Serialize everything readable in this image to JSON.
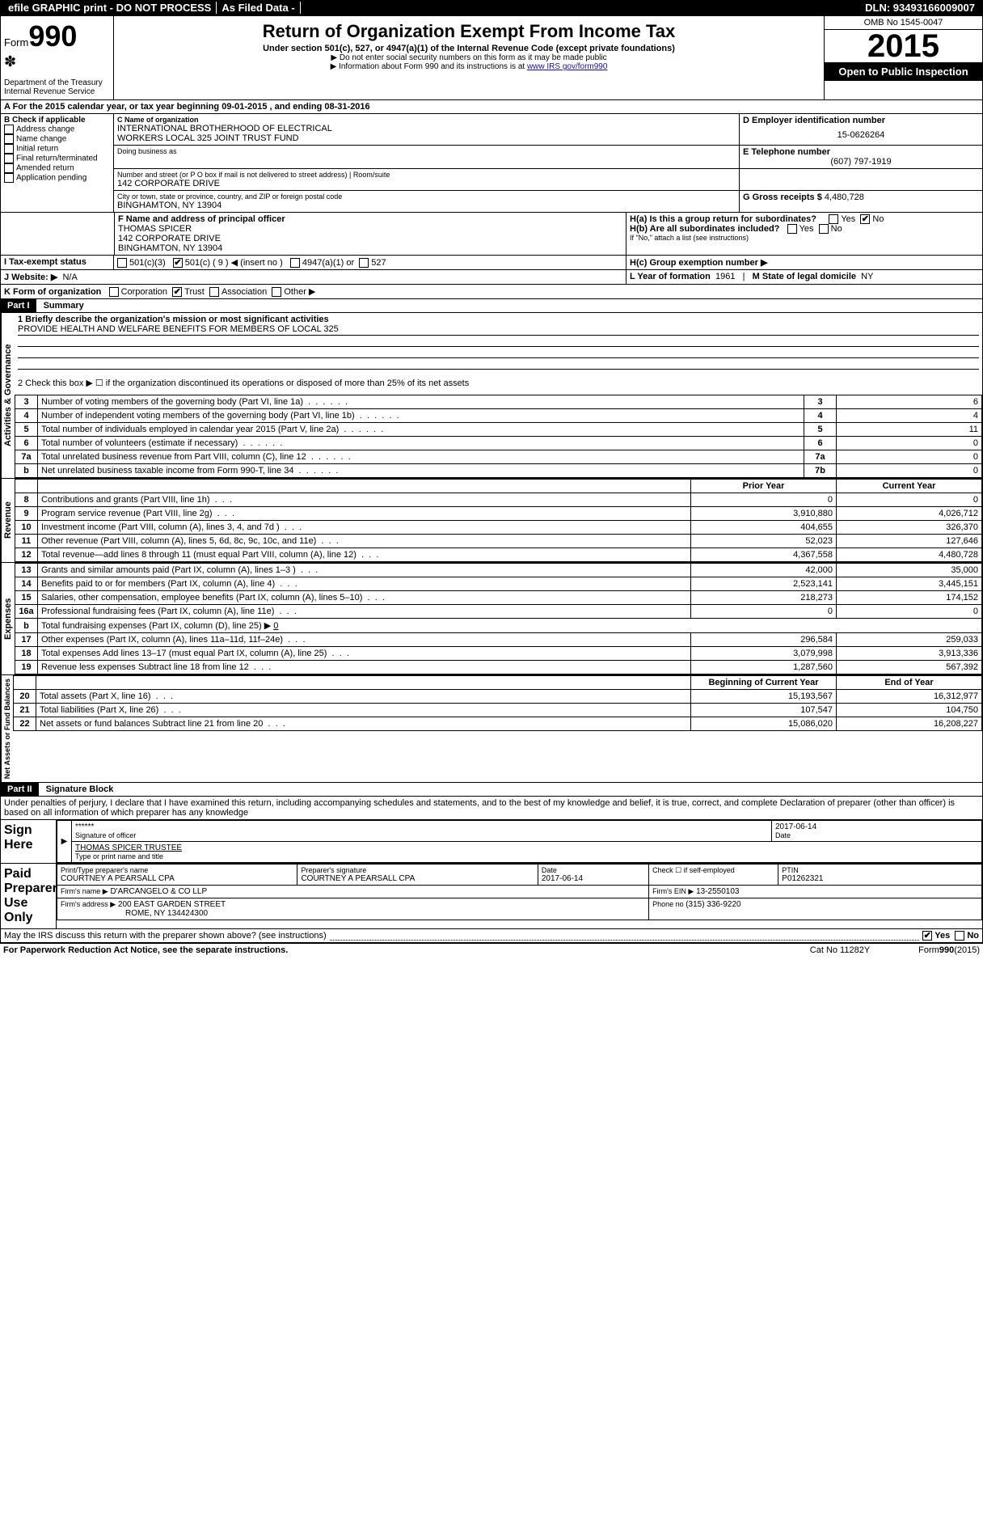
{
  "topbar": {
    "efile": "efile GRAPHIC print - DO NOT PROCESS",
    "asfiled": "As Filed Data -",
    "dln": "DLN: 93493166009007"
  },
  "header": {
    "form_label": "Form",
    "form_number": "990",
    "dept": "Department of the Treasury",
    "irs": "Internal Revenue Service",
    "title": "Return of Organization Exempt From Income Tax",
    "subtitle": "Under section 501(c), 527, or 4947(a)(1) of the Internal Revenue Code (except private foundations)",
    "note1": "▶ Do not enter social security numbers on this form as it may be made public",
    "note2_pre": "▶ Information about Form 990 and its instructions is at ",
    "note2_link": "www IRS gov/form990",
    "omb": "OMB No 1545-0047",
    "year": "2015",
    "open": "Open to Public Inspection"
  },
  "lineA": {
    "text_pre": "A  For the 2015 calendar year, or tax year beginning ",
    "begin": "09-01-2015",
    "mid": " , and ending ",
    "end": "08-31-2016"
  },
  "boxB": {
    "title": "B Check if applicable",
    "items": [
      "Address change",
      "Name change",
      "Initial return",
      "Final return/terminated",
      "Amended return",
      "Application pending"
    ]
  },
  "boxC": {
    "label": "C Name of organization",
    "org1": "INTERNATIONAL BROTHERHOOD OF ELECTRICAL",
    "org2": "WORKERS LOCAL 325 JOINT TRUST FUND",
    "dba_label": "Doing business as",
    "street_label": "Number and street (or P O  box if mail is not delivered to street address)",
    "room_label": "Room/suite",
    "street": "142 CORPORATE DRIVE",
    "city_label": "City or town, state or province, country, and ZIP or foreign postal code",
    "city": "BINGHAMTON, NY  13904"
  },
  "boxD": {
    "label": "D Employer identification number",
    "value": "15-0626264"
  },
  "boxE": {
    "label": "E Telephone number",
    "value": "(607) 797-1919"
  },
  "boxG": {
    "label": "G Gross receipts $ ",
    "value": "4,480,728"
  },
  "boxF": {
    "label": "F  Name and address of principal officer",
    "name": "THOMAS SPICER",
    "addr1": "142 CORPORATE DRIVE",
    "addr2": "BINGHAMTON, NY  13904"
  },
  "boxH": {
    "a_label": "H(a)  Is this a group return for subordinates?",
    "a_val": "No",
    "yes": "Yes",
    "no": "No",
    "b_label": "H(b)  Are all subordinates included?",
    "b_note": "If \"No,\" attach a list  (see instructions)",
    "c_label": "H(c)  Group exemption number ▶"
  },
  "lineI": {
    "label": "I  Tax-exempt status",
    "opt1": "501(c)(3)",
    "opt2": "501(c) ( 9 ) ◀ (insert no )",
    "opt3": "4947(a)(1) or",
    "opt4": "527"
  },
  "lineJ": {
    "label": "J  Website: ▶",
    "value": "N/A"
  },
  "lineK": {
    "label": "K Form of organization",
    "opts": [
      "Corporation",
      "Trust",
      "Association",
      "Other ▶"
    ],
    "checked": 1
  },
  "lineL": {
    "label": "L Year of formation",
    "value": "1961"
  },
  "lineM": {
    "label": "M State of legal domicile",
    "value": "NY"
  },
  "part1": {
    "hdr": "Part I",
    "title": "Summary",
    "q1_label": "1 Briefly describe the organization's mission or most significant activities",
    "q1_val": "PROVIDE HEALTH AND WELFARE BENEFITS FOR MEMBERS OF LOCAL 325",
    "q2": "2  Check this box ▶ ☐ if the organization discontinued its operations or disposed of more than 25% of its net assets",
    "rows_sm": [
      {
        "n": "3",
        "t": "Number of voting members of the governing body (Part VI, line 1a)",
        "c": "3",
        "v": "6"
      },
      {
        "n": "4",
        "t": "Number of independent voting members of the governing body (Part VI, line 1b)",
        "c": "4",
        "v": "4"
      },
      {
        "n": "5",
        "t": "Total number of individuals employed in calendar year 2015 (Part V, line 2a)",
        "c": "5",
        "v": "11"
      },
      {
        "n": "6",
        "t": "Total number of volunteers (estimate if necessary)",
        "c": "6",
        "v": "0"
      },
      {
        "n": "7a",
        "t": "Total unrelated business revenue from Part VIII, column (C), line 12",
        "c": "7a",
        "v": "0"
      },
      {
        "n": "b",
        "t": "Net unrelated business taxable income from Form 990-T, line 34",
        "c": "7b",
        "v": "0"
      }
    ],
    "tabs": {
      "activities": "Activities & Governance",
      "revenue": "Revenue",
      "expenses": "Expenses",
      "netassets": "Net Assets or Fund Balances"
    },
    "col_prior": "Prior Year",
    "col_curr": "Current Year",
    "rev_rows": [
      {
        "n": "8",
        "t": "Contributions and grants (Part VIII, line 1h)",
        "p": "0",
        "c": "0"
      },
      {
        "n": "9",
        "t": "Program service revenue (Part VIII, line 2g)",
        "p": "3,910,880",
        "c": "4,026,712"
      },
      {
        "n": "10",
        "t": "Investment income (Part VIII, column (A), lines 3, 4, and 7d )",
        "p": "404,655",
        "c": "326,370"
      },
      {
        "n": "11",
        "t": "Other revenue (Part VIII, column (A), lines 5, 6d, 8c, 9c, 10c, and 11e)",
        "p": "52,023",
        "c": "127,646"
      },
      {
        "n": "12",
        "t": "Total revenue—add lines 8 through 11 (must equal Part VIII, column (A), line 12)",
        "p": "4,367,558",
        "c": "4,480,728"
      }
    ],
    "exp_rows": [
      {
        "n": "13",
        "t": "Grants and similar amounts paid (Part IX, column (A), lines 1–3 )",
        "p": "42,000",
        "c": "35,000"
      },
      {
        "n": "14",
        "t": "Benefits paid to or for members (Part IX, column (A), line 4)",
        "p": "2,523,141",
        "c": "3,445,151"
      },
      {
        "n": "15",
        "t": "Salaries, other compensation, employee benefits (Part IX, column (A), lines 5–10)",
        "p": "218,273",
        "c": "174,152"
      },
      {
        "n": "16a",
        "t": "Professional fundraising fees (Part IX, column (A), line 11e)",
        "p": "0",
        "c": "0"
      }
    ],
    "exp_16b_label": "b",
    "exp_16b_text": "Total fundraising expenses (Part IX, column (D), line 25) ▶",
    "exp_16b_val": "0",
    "exp_rows2": [
      {
        "n": "17",
        "t": "Other expenses (Part IX, column (A), lines 11a–11d, 11f–24e)",
        "p": "296,584",
        "c": "259,033"
      },
      {
        "n": "18",
        "t": "Total expenses  Add lines 13–17 (must equal Part IX, column (A), line 25)",
        "p": "3,079,998",
        "c": "3,913,336"
      },
      {
        "n": "19",
        "t": "Revenue less expenses  Subtract line 18 from line 12",
        "p": "1,287,560",
        "c": "567,392"
      }
    ],
    "col_begin": "Beginning of Current Year",
    "col_end": "End of Year",
    "net_rows": [
      {
        "n": "20",
        "t": "Total assets (Part X, line 16)",
        "p": "15,193,567",
        "c": "16,312,977"
      },
      {
        "n": "21",
        "t": "Total liabilities (Part X, line 26)",
        "p": "107,547",
        "c": "104,750"
      },
      {
        "n": "22",
        "t": "Net assets or fund balances  Subtract line 21 from line 20",
        "p": "15,086,020",
        "c": "16,208,227"
      }
    ]
  },
  "part2": {
    "hdr": "Part II",
    "title": "Signature Block",
    "perjury": "Under penalties of perjury, I declare that I have examined this return, including accompanying schedules and statements, and to the best of my knowledge and belief, it is true, correct, and complete  Declaration of preparer (other than officer) is based on all information of which preparer has any knowledge",
    "sign_here": "Sign Here",
    "sig_stars": "******",
    "sig_of_officer": "Signature of officer",
    "sig_date": "2017-06-14",
    "date_label": "Date",
    "officer_name": "THOMAS SPICER TRUSTEE",
    "officer_type": "Type or print name and title",
    "paid": "Paid Preparer Use Only",
    "prep_name_label": "Print/Type preparer's name",
    "prep_name": "COURTNEY A PEARSALL CPA",
    "prep_sig_label": "Preparer's signature",
    "prep_sig": "COURTNEY A PEARSALL CPA",
    "prep_date_label": "Date",
    "prep_date": "2017-06-14",
    "self_emp_label": "Check ☐ if self-employed",
    "ptin_label": "PTIN",
    "ptin": "P01262321",
    "firm_name_label": "Firm's name    ▶",
    "firm_name": "D'ARCANGELO & CO LLP",
    "firm_ein_label": "Firm's EIN ▶",
    "firm_ein": "13-2550103",
    "firm_addr_label": "Firm's address ▶",
    "firm_addr": "200 EAST GARDEN STREET",
    "firm_city": "ROME, NY  134424300",
    "phone_label": "Phone no  ",
    "phone": "(315) 336-9220",
    "may_discuss": "May the IRS discuss this return with the preparer shown above? (see instructions) ",
    "yes": "Yes",
    "no": "No",
    "paperwork": "For Paperwork Reduction Act Notice, see the separate instructions.",
    "catno": "Cat No  11282Y",
    "formfoot": "Form 990 (2015)"
  }
}
